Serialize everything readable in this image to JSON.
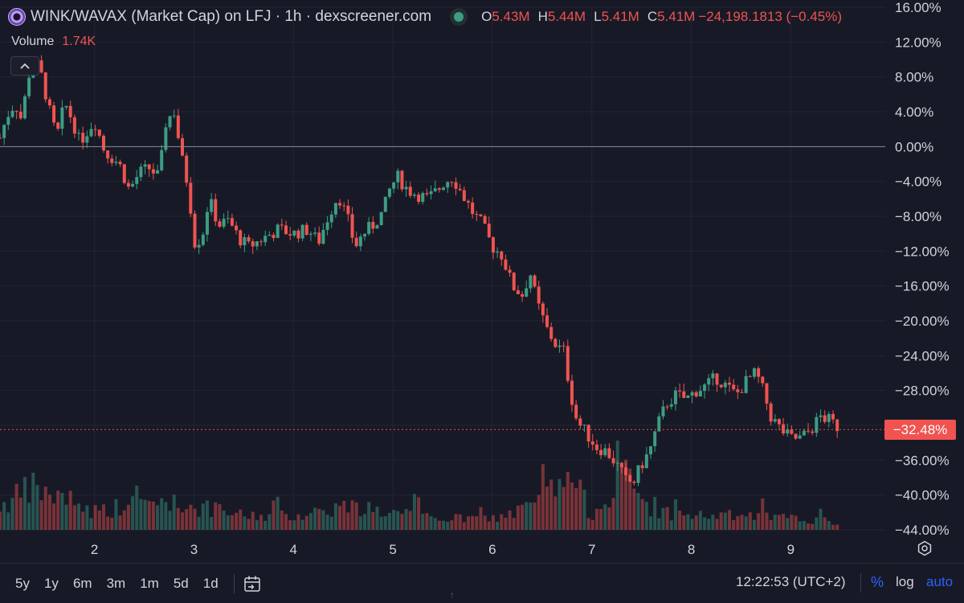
{
  "header": {
    "pair_title": "WINK/WAVAX (Market Cap) on LFJ · 1h · dexscreener.com",
    "ohlc": [
      {
        "key": "O",
        "value": "5.43M"
      },
      {
        "key": "H",
        "value": "5.44M"
      },
      {
        "key": "L",
        "value": "5.41M"
      },
      {
        "key": "C",
        "value": "5.41M"
      }
    ],
    "change": "−24,198.1813 (−0.45%)",
    "volume_label": "Volume",
    "volume_value": "1.74K",
    "collapse_icon": "chevron-up-icon"
  },
  "colors": {
    "background": "#171a26",
    "up": "#3d9c84",
    "down": "#f05350",
    "grid": "#232632",
    "text": "#d1d4dc",
    "accent": "#2962ff"
  },
  "chart_data": {
    "type": "candlestick",
    "y_axis_unit": "%",
    "y_ticks": [
      "16.00%",
      "12.00%",
      "8.00%",
      "4.00%",
      "0.00%",
      "−4.00%",
      "−8.00%",
      "−12.00%",
      "−16.00%",
      "−20.00%",
      "−24.00%",
      "−28.00%",
      "−32.00%",
      "−36.00%",
      "−40.00%",
      "−44.00%"
    ],
    "y_range": [
      -44,
      16
    ],
    "x_ticks": [
      "2",
      "3",
      "4",
      "5",
      "6",
      "7",
      "8",
      "9"
    ],
    "x_range": [
      1.05,
      9.95
    ],
    "baseline": 0,
    "current_value": -32.48,
    "current_label": "−32.48%",
    "close_path": [
      [
        1.05,
        1.0
      ],
      [
        1.12,
        3.5
      ],
      [
        1.2,
        5.0
      ],
      [
        1.27,
        3.0
      ],
      [
        1.33,
        8.0
      ],
      [
        1.4,
        10.0
      ],
      [
        1.47,
        8.0
      ],
      [
        1.55,
        4.0
      ],
      [
        1.62,
        1.0
      ],
      [
        1.7,
        5.0
      ],
      [
        1.78,
        3.0
      ],
      [
        1.85,
        0.5
      ],
      [
        2.0,
        3.0
      ],
      [
        2.1,
        -0.5
      ],
      [
        2.25,
        -2.0
      ],
      [
        2.35,
        -5.0
      ],
      [
        2.45,
        -3.0
      ],
      [
        2.55,
        -2.5
      ],
      [
        2.65,
        -3.5
      ],
      [
        2.72,
        3.0
      ],
      [
        2.8,
        4.0
      ],
      [
        2.88,
        -1.5
      ],
      [
        2.95,
        -5.0
      ],
      [
        3.0,
        -11.0
      ],
      [
        3.08,
        -10.5
      ],
      [
        3.15,
        -6.0
      ],
      [
        3.25,
        -9.0
      ],
      [
        3.35,
        -8.5
      ],
      [
        3.45,
        -10.5
      ],
      [
        3.55,
        -11.5
      ],
      [
        3.7,
        -10.5
      ],
      [
        3.85,
        -9.5
      ],
      [
        4.0,
        -10.0
      ],
      [
        4.15,
        -9.5
      ],
      [
        4.25,
        -11.0
      ],
      [
        4.35,
        -8.0
      ],
      [
        4.45,
        -5.5
      ],
      [
        4.55,
        -8.5
      ],
      [
        4.62,
        -11.5
      ],
      [
        4.7,
        -10.0
      ],
      [
        4.8,
        -9.0
      ],
      [
        4.9,
        -7.5
      ],
      [
        4.98,
        -4.5
      ],
      [
        5.05,
        -3.5
      ],
      [
        5.15,
        -5.0
      ],
      [
        5.25,
        -5.5
      ],
      [
        5.35,
        -6.0
      ],
      [
        5.45,
        -5.0
      ],
      [
        5.52,
        -4.0
      ],
      [
        5.6,
        -3.5
      ],
      [
        5.7,
        -5.5
      ],
      [
        5.8,
        -7.5
      ],
      [
        5.9,
        -9.0
      ],
      [
        6.0,
        -11.5
      ],
      [
        6.1,
        -12.5
      ],
      [
        6.2,
        -16.0
      ],
      [
        6.3,
        -17.0
      ],
      [
        6.38,
        -14.5
      ],
      [
        6.45,
        -18.0
      ],
      [
        6.55,
        -21.0
      ],
      [
        6.65,
        -23.0
      ],
      [
        6.72,
        -23.5
      ],
      [
        6.78,
        -28.0
      ],
      [
        6.85,
        -31.5
      ],
      [
        6.95,
        -33.0
      ],
      [
        7.05,
        -34.5
      ],
      [
        7.15,
        -35.0
      ],
      [
        7.25,
        -36.5
      ],
      [
        7.35,
        -38.5
      ],
      [
        7.42,
        -38.5
      ],
      [
        7.5,
        -36.5
      ],
      [
        7.58,
        -35.0
      ],
      [
        7.66,
        -32.0
      ],
      [
        7.75,
        -29.5
      ],
      [
        7.85,
        -28.5
      ],
      [
        7.95,
        -29.0
      ],
      [
        8.05,
        -28.0
      ],
      [
        8.15,
        -27.5
      ],
      [
        8.25,
        -26.5
      ],
      [
        8.35,
        -27.5
      ],
      [
        8.45,
        -28.5
      ],
      [
        8.55,
        -27.0
      ],
      [
        8.65,
        -26.0
      ],
      [
        8.72,
        -28.0
      ],
      [
        8.8,
        -31.0
      ],
      [
        8.9,
        -32.5
      ],
      [
        9.0,
        -33.5
      ],
      [
        9.1,
        -33.5
      ],
      [
        9.2,
        -32.5
      ],
      [
        9.3,
        -31.0
      ],
      [
        9.4,
        -31.5
      ],
      [
        9.5,
        -32.48
      ]
    ],
    "volume_max": 1.0,
    "volume_profile": [
      [
        1.05,
        0.25
      ],
      [
        1.4,
        0.45
      ],
      [
        1.6,
        0.35
      ],
      [
        2.0,
        0.2
      ],
      [
        2.6,
        0.3
      ],
      [
        3.0,
        0.25
      ],
      [
        3.5,
        0.15
      ],
      [
        4.0,
        0.15
      ],
      [
        4.5,
        0.25
      ],
      [
        5.0,
        0.18
      ],
      [
        5.5,
        0.12
      ],
      [
        6.0,
        0.12
      ],
      [
        6.3,
        0.2
      ],
      [
        6.8,
        0.55
      ],
      [
        7.0,
        0.15
      ],
      [
        7.3,
        0.6
      ],
      [
        7.6,
        0.2
      ],
      [
        8.0,
        0.15
      ],
      [
        8.5,
        0.15
      ],
      [
        9.0,
        0.12
      ],
      [
        9.5,
        0.08
      ]
    ]
  },
  "footer": {
    "ranges": [
      "5y",
      "1y",
      "6m",
      "3m",
      "1m",
      "5d",
      "1d"
    ],
    "calendar_icon": "calendar-goto-icon",
    "time": "12:22:53 (UTC+2)",
    "percent_label": "%",
    "log_label": "log",
    "auto_label": "auto",
    "settings_icon": "gear-icon"
  }
}
